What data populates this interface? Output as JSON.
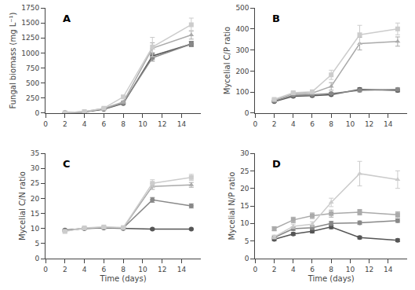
{
  "chart_data": [
    {
      "type": "line",
      "title": "A",
      "ylabel": "Fungal biomass (mg L⁻¹)",
      "xlim": [
        0,
        16
      ],
      "xticks": [
        0,
        2,
        4,
        6,
        8,
        10,
        12,
        14
      ],
      "ylim": [
        0,
        1750
      ],
      "yticks": [
        0,
        250,
        500,
        750,
        1000,
        1250,
        1500,
        1750
      ],
      "grid": false,
      "x": [
        2,
        4,
        6,
        8,
        11,
        15
      ],
      "series": [
        {
          "color": "#555555",
          "marker": "circle",
          "values": [
            5,
            20,
            65,
            160,
            950,
            1150
          ],
          "yerr": [
            2,
            4,
            8,
            12,
            50,
            35
          ]
        },
        {
          "color": "#888888",
          "marker": "circle",
          "values": [
            5,
            22,
            70,
            170,
            920,
            1150
          ],
          "yerr": [
            2,
            4,
            8,
            15,
            55,
            45
          ]
        },
        {
          "color": "#aaaaaa",
          "marker": "triangle-up",
          "values": [
            6,
            25,
            78,
            185,
            1080,
            1300
          ],
          "yerr": [
            2,
            5,
            10,
            20,
            90,
            70
          ]
        },
        {
          "color": "#cccccc",
          "marker": "square",
          "values": [
            6,
            26,
            82,
            270,
            1100,
            1470
          ],
          "yerr": [
            2,
            5,
            10,
            25,
            160,
            110
          ]
        }
      ]
    },
    {
      "type": "line",
      "title": "B",
      "ylabel": "Mycelial C/P ratio",
      "xlim": [
        0,
        16
      ],
      "xticks": [
        0,
        2,
        4,
        6,
        8,
        10,
        12,
        14
      ],
      "ylim": [
        0,
        500
      ],
      "yticks": [
        0,
        100,
        200,
        300,
        400,
        500
      ],
      "grid": false,
      "x": [
        2,
        4,
        6,
        8,
        11,
        15
      ],
      "series": [
        {
          "color": "#555555",
          "marker": "circle",
          "values": [
            55,
            80,
            83,
            88,
            113,
            108
          ],
          "yerr": [
            4,
            5,
            5,
            5,
            7,
            7
          ]
        },
        {
          "color": "#888888",
          "marker": "circle",
          "values": [
            58,
            85,
            88,
            93,
            108,
            113
          ],
          "yerr": [
            4,
            5,
            5,
            5,
            7,
            7
          ]
        },
        {
          "color": "#aaaaaa",
          "marker": "triangle-up",
          "values": [
            62,
            92,
            95,
            127,
            330,
            340
          ],
          "yerr": [
            5,
            6,
            6,
            18,
            30,
            22
          ]
        },
        {
          "color": "#cccccc",
          "marker": "square",
          "values": [
            65,
            97,
            102,
            182,
            372,
            400
          ],
          "yerr": [
            5,
            6,
            6,
            22,
            45,
            28
          ]
        }
      ]
    },
    {
      "type": "line",
      "title": "C",
      "ylabel": "Mycelial C/N ratio",
      "xlabel": "Time (days)",
      "xlim": [
        0,
        16
      ],
      "xticks": [
        0,
        2,
        4,
        6,
        8,
        10,
        12,
        14
      ],
      "ylim": [
        0,
        35
      ],
      "yticks": [
        0,
        5,
        10,
        15,
        20,
        25,
        30,
        35
      ],
      "grid": false,
      "x": [
        2,
        4,
        6,
        8,
        11,
        15
      ],
      "series": [
        {
          "color": "#555555",
          "marker": "circle",
          "values": [
            9.5,
            10.0,
            10.2,
            10.0,
            9.8,
            9.8
          ],
          "yerr": [
            0.3,
            0.3,
            0.3,
            0.3,
            0.3,
            0.3
          ]
        },
        {
          "color": "#888888",
          "marker": "circle",
          "values": [
            9.3,
            10.0,
            10.3,
            10.2,
            19.5,
            17.5
          ],
          "yerr": [
            0.3,
            0.3,
            0.3,
            0.3,
            0.8,
            0.7
          ]
        },
        {
          "color": "#aaaaaa",
          "marker": "triangle-up",
          "values": [
            9.2,
            10.1,
            10.4,
            10.2,
            24.0,
            24.5
          ],
          "yerr": [
            0.3,
            0.3,
            0.3,
            0.3,
            1.0,
            0.8
          ]
        },
        {
          "color": "#cccccc",
          "marker": "square",
          "values": [
            9.0,
            10.2,
            10.5,
            10.3,
            25.0,
            27.0
          ],
          "yerr": [
            0.3,
            0.3,
            0.3,
            0.4,
            1.2,
            1.0
          ]
        }
      ]
    },
    {
      "type": "line",
      "title": "D",
      "ylabel": "Mycelial N/P ratio",
      "xlabel": "Time (days)",
      "xlim": [
        0,
        16
      ],
      "xticks": [
        0,
        2,
        4,
        6,
        8,
        10,
        12,
        14
      ],
      "ylim": [
        0,
        30
      ],
      "yticks": [
        0,
        5,
        10,
        15,
        20,
        25,
        30
      ],
      "grid": false,
      "x": [
        2,
        4,
        6,
        8,
        11,
        15
      ],
      "series": [
        {
          "color": "#555555",
          "marker": "circle",
          "values": [
            5.5,
            7.0,
            7.8,
            9.0,
            6.0,
            5.2
          ],
          "yerr": [
            0.4,
            0.4,
            0.5,
            0.5,
            0.4,
            0.4
          ]
        },
        {
          "color": "#888888",
          "marker": "circle",
          "values": [
            6.0,
            8.5,
            8.8,
            10.0,
            10.2,
            10.8
          ],
          "yerr": [
            0.4,
            0.5,
            0.5,
            0.6,
            0.5,
            0.5
          ]
        },
        {
          "color": "#aaaaaa",
          "marker": "square",
          "values": [
            8.5,
            11.0,
            12.2,
            12.8,
            13.2,
            12.5
          ],
          "yerr": [
            0.6,
            0.8,
            0.8,
            1.0,
            0.8,
            0.8
          ]
        },
        {
          "color": "#cccccc",
          "marker": "triangle-up",
          "values": [
            6.2,
            9.2,
            9.8,
            16.0,
            24.2,
            22.5
          ],
          "yerr": [
            0.5,
            0.6,
            0.7,
            1.2,
            3.5,
            2.5
          ]
        }
      ]
    }
  ]
}
